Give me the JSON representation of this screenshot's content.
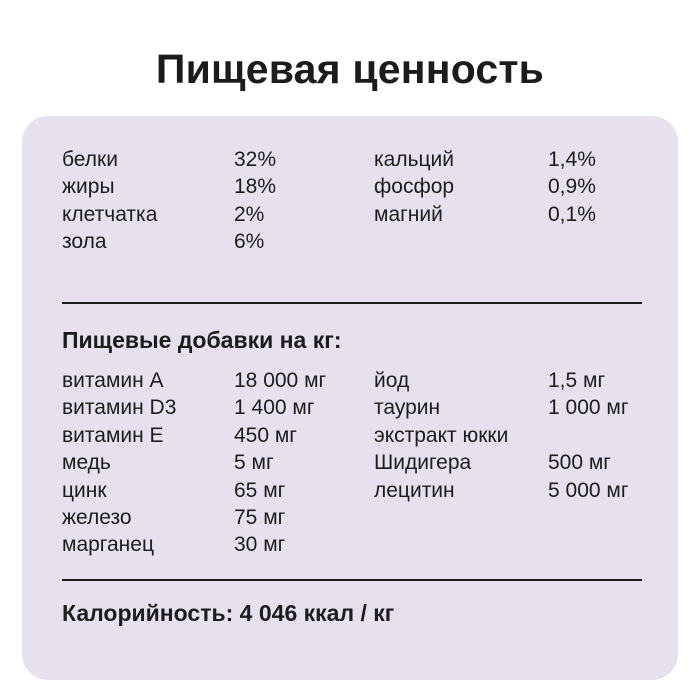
{
  "title": "Пищевая ценность",
  "composition": {
    "left": [
      {
        "name": "белки",
        "value": "32%"
      },
      {
        "name": "жиры",
        "value": "18%"
      },
      {
        "name": "клетчатка",
        "value": "2%"
      },
      {
        "name": "зола",
        "value": "6%"
      }
    ],
    "right": [
      {
        "name": "кальций",
        "value": "1,4%"
      },
      {
        "name": "фосфор",
        "value": "0,9%"
      },
      {
        "name": "магний",
        "value": "0,1%"
      }
    ]
  },
  "additives": {
    "heading": "Пищевые добавки на кг:",
    "left": [
      {
        "name": "витамин А",
        "value": "18 000 мг"
      },
      {
        "name": "витамин D3",
        "value": "1 400 мг"
      },
      {
        "name": "витамин Е",
        "value": "450 мг"
      },
      {
        "name": "медь",
        "value": "5 мг"
      },
      {
        "name": "цинк",
        "value": "65 мг"
      },
      {
        "name": "железо",
        "value": "75 мг"
      },
      {
        "name": "марганец",
        "value": "30 мг"
      }
    ],
    "right": [
      {
        "name": "йод",
        "value": "1,5 мг"
      },
      {
        "name": "таурин",
        "value": "1 000 мг"
      },
      {
        "name": "экстракт юкки",
        "value": ""
      },
      {
        "name": "Шидигера",
        "value": "500 мг"
      },
      {
        "name": "лецитин",
        "value": "5 000 мг"
      }
    ]
  },
  "calories": "Калорийность: 4 046 ккал / кг"
}
